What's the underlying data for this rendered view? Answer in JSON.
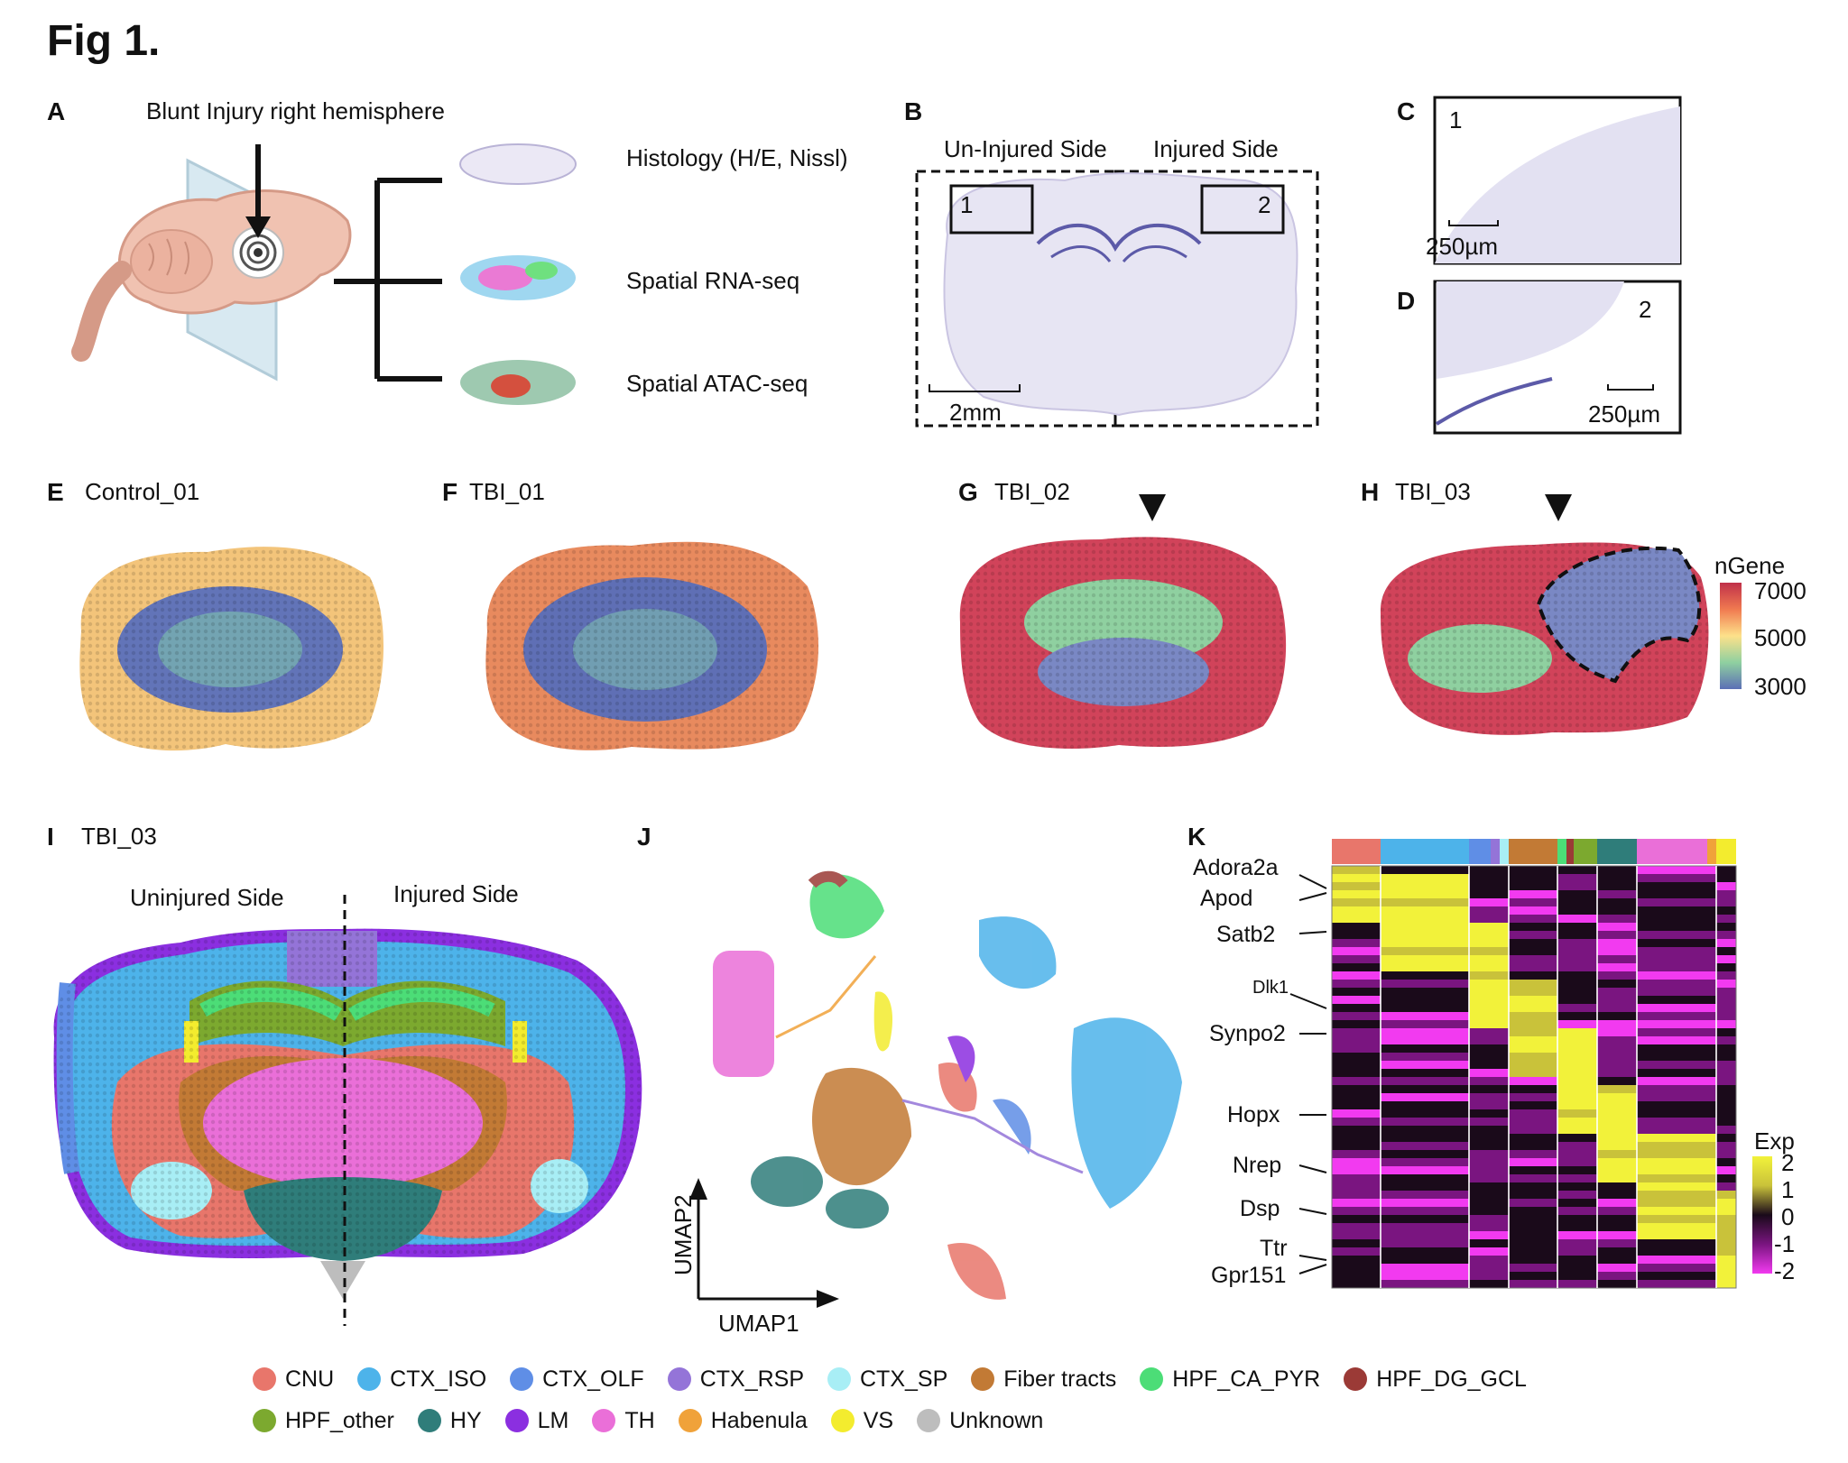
{
  "figure": {
    "title": "Fig 1."
  },
  "panelA": {
    "label": "A",
    "arrow_label": "Blunt Injury right hemisphere",
    "branches": [
      "Histology (H/E, Nissl)",
      "Spatial RNA-seq",
      "Spatial ATAC-seq"
    ]
  },
  "panelB": {
    "label": "B",
    "left_side": "Un-Injured Side",
    "right_side": "Injured Side",
    "box1": "1",
    "box2": "2",
    "scalebar": "2mm"
  },
  "panelC": {
    "label": "C",
    "box": "1",
    "scalebar": "250µm"
  },
  "panelD": {
    "label": "D",
    "box": "2",
    "scalebar": "250µm"
  },
  "panelE": {
    "label": "E",
    "sample": "Control_01"
  },
  "panelF": {
    "label": "F",
    "sample": "TBI_01"
  },
  "panelG": {
    "label": "G",
    "sample": "TBI_02"
  },
  "panelH": {
    "label": "H",
    "sample": "TBI_03"
  },
  "colorbar": {
    "title": "nGene",
    "ticks": [
      "7000",
      "5000",
      "3000"
    ],
    "colors": [
      "#c0304a",
      "#f07a50",
      "#fde18a",
      "#8fd0a0",
      "#5c6fb5"
    ]
  },
  "panelI": {
    "label": "I",
    "sample": "TBI_03",
    "left_side": "Uninjured Side",
    "right_side": "Injured Side"
  },
  "panelJ": {
    "label": "J",
    "xaxis": "UMAP1",
    "yaxis": "UMAP2"
  },
  "panelK": {
    "label": "K",
    "genes": [
      "Adora2a",
      "Apod",
      "Satb2",
      "Dlk1",
      "Synpo2",
      "Hopx",
      "Nrep",
      "Dsp",
      "Ttr",
      "Gpr151"
    ],
    "legend_title": "Exp",
    "legend_ticks": [
      "2",
      "1",
      "0",
      "-1",
      "-2"
    ],
    "heatmap_colors": [
      "#f23af0",
      "#7a1580",
      "#1a0a1a",
      "#c9c23a",
      "#f2f23a"
    ]
  },
  "legend": {
    "items": [
      {
        "label": "CNU",
        "color": "#e8766b"
      },
      {
        "label": "CTX_ISO",
        "color": "#4db3ea"
      },
      {
        "label": "CTX_OLF",
        "color": "#5f8ee6"
      },
      {
        "label": "CTX_RSP",
        "color": "#9474d8"
      },
      {
        "label": "CTX_SP",
        "color": "#a8eef5"
      },
      {
        "label": "Fiber tracts",
        "color": "#c27a35"
      },
      {
        "label": "HPF_CA_PYR",
        "color": "#4cdd77"
      },
      {
        "label": "HPF_DG_GCL",
        "color": "#9b3a36"
      },
      {
        "label": "HPF_other",
        "color": "#7ca92f"
      },
      {
        "label": "HY",
        "color": "#2f7d7a"
      },
      {
        "label": "LM",
        "color": "#8b2fe0"
      },
      {
        "label": "TH",
        "color": "#ea6fd8"
      },
      {
        "label": "Habenula",
        "color": "#f0a23a"
      },
      {
        "label": "VS",
        "color": "#f3ec2e"
      },
      {
        "label": "Unknown",
        "color": "#bdbdbd"
      }
    ]
  }
}
